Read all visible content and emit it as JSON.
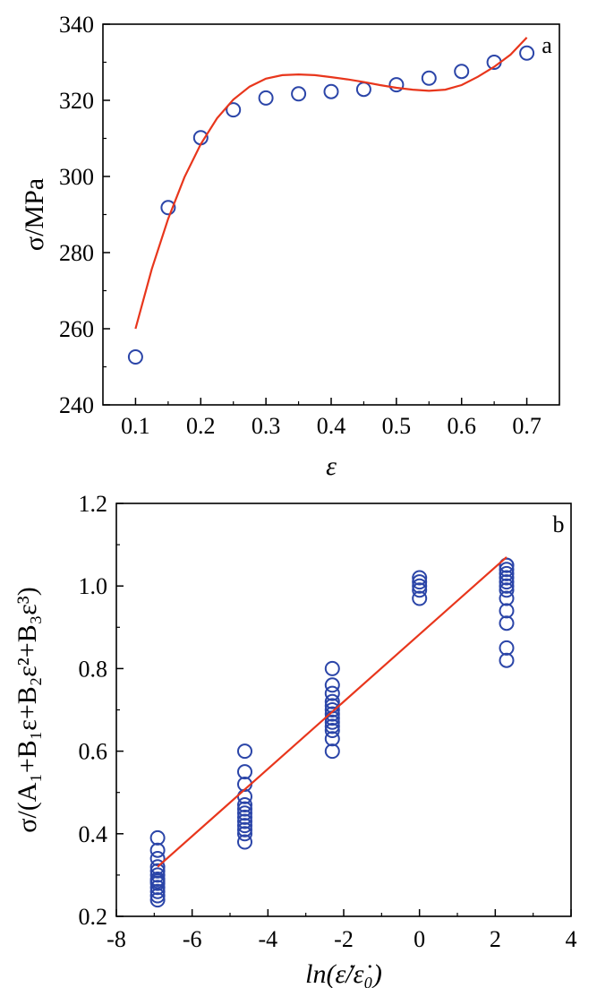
{
  "chart_data": [
    {
      "type": "scatter",
      "panel_label": "a",
      "xlabel": "ε",
      "ylabel": "σ/MPa",
      "xlim": [
        0.05,
        0.75
      ],
      "ylim": [
        240,
        340
      ],
      "xticks": [
        "0.1",
        "0.2",
        "0.3",
        "0.4",
        "0.5",
        "0.6",
        "0.7"
      ],
      "yticks": [
        "240",
        "260",
        "280",
        "300",
        "320",
        "340"
      ],
      "grid": false,
      "legend": "none",
      "colors": {
        "points": "#2b45a8",
        "fit": "#e8361c"
      },
      "series": [
        {
          "kind": "points",
          "x": [
            0.1,
            0.15,
            0.2,
            0.25,
            0.3,
            0.35,
            0.4,
            0.45,
            0.5,
            0.55,
            0.6,
            0.65,
            0.7
          ],
          "y": [
            252.6,
            291.8,
            310.2,
            317.5,
            320.6,
            321.7,
            322.3,
            322.9,
            324.1,
            325.8,
            327.6,
            330.0,
            332.4
          ]
        },
        {
          "kind": "fit-line",
          "x": [
            0.1,
            0.125,
            0.15,
            0.175,
            0.2,
            0.225,
            0.25,
            0.275,
            0.3,
            0.325,
            0.35,
            0.375,
            0.4,
            0.425,
            0.45,
            0.475,
            0.5,
            0.525,
            0.55,
            0.575,
            0.6,
            0.625,
            0.65,
            0.675,
            0.7
          ],
          "y": [
            260.0,
            275.7,
            288.9,
            299.8,
            308.5,
            315.3,
            320.2,
            323.6,
            325.7,
            326.6,
            326.8,
            326.6,
            326.1,
            325.5,
            324.8,
            324.0,
            323.3,
            322.8,
            322.5,
            322.8,
            324.0,
            326.2,
            328.8,
            332.0,
            336.5
          ]
        }
      ]
    },
    {
      "type": "scatter",
      "panel_label": "b",
      "xlabel": "ln(ε̇/ε̇₀)",
      "ylabel": "σ/(A₁+B₁ε+B₂ε²+B₃ε³)",
      "xlim": [
        -8,
        4
      ],
      "ylim": [
        0.2,
        1.2
      ],
      "xticks": [
        "-8",
        "-6",
        "-4",
        "-2",
        "0",
        "2",
        "4"
      ],
      "yticks": [
        "0.2",
        "0.4",
        "0.6",
        "0.8",
        "1.0",
        "1.2"
      ],
      "grid": false,
      "legend": "none",
      "colors": {
        "points": "#2b45a8",
        "fit": "#e8361c"
      },
      "series": [
        {
          "kind": "points",
          "x": [
            -6.91,
            -6.91,
            -6.91,
            -6.91,
            -6.91,
            -6.91,
            -6.91,
            -6.91,
            -6.91,
            -6.91,
            -6.91,
            -6.91,
            -6.91,
            -4.61,
            -4.61,
            -4.61,
            -4.61,
            -4.61,
            -4.61,
            -4.61,
            -4.61,
            -4.61,
            -4.61,
            -4.61,
            -4.61,
            -4.61,
            -2.3,
            -2.3,
            -2.3,
            -2.3,
            -2.3,
            -2.3,
            -2.3,
            -2.3,
            -2.3,
            -2.3,
            -2.3,
            -2.3,
            -2.3,
            0.0,
            0.0,
            0.0,
            0.0,
            0.0,
            2.3,
            2.3,
            2.3,
            2.3,
            2.3,
            2.3,
            2.3,
            2.3,
            2.3,
            2.3,
            2.3,
            2.3,
            2.3
          ],
          "y": [
            0.24,
            0.25,
            0.26,
            0.27,
            0.28,
            0.285,
            0.29,
            0.3,
            0.31,
            0.32,
            0.34,
            0.36,
            0.39,
            0.38,
            0.4,
            0.41,
            0.42,
            0.43,
            0.44,
            0.45,
            0.46,
            0.47,
            0.49,
            0.52,
            0.55,
            0.6,
            0.6,
            0.63,
            0.65,
            0.66,
            0.67,
            0.68,
            0.69,
            0.7,
            0.71,
            0.72,
            0.74,
            0.76,
            0.8,
            0.97,
            0.99,
            1.0,
            1.01,
            1.02,
            0.82,
            0.85,
            0.91,
            0.94,
            0.97,
            0.99,
            1.0,
            1.01,
            1.02,
            1.03,
            1.04,
            1.05,
            1.05
          ]
        },
        {
          "kind": "fit-line",
          "x": [
            -6.91,
            2.3
          ],
          "y": [
            0.32,
            1.07
          ]
        }
      ]
    }
  ]
}
